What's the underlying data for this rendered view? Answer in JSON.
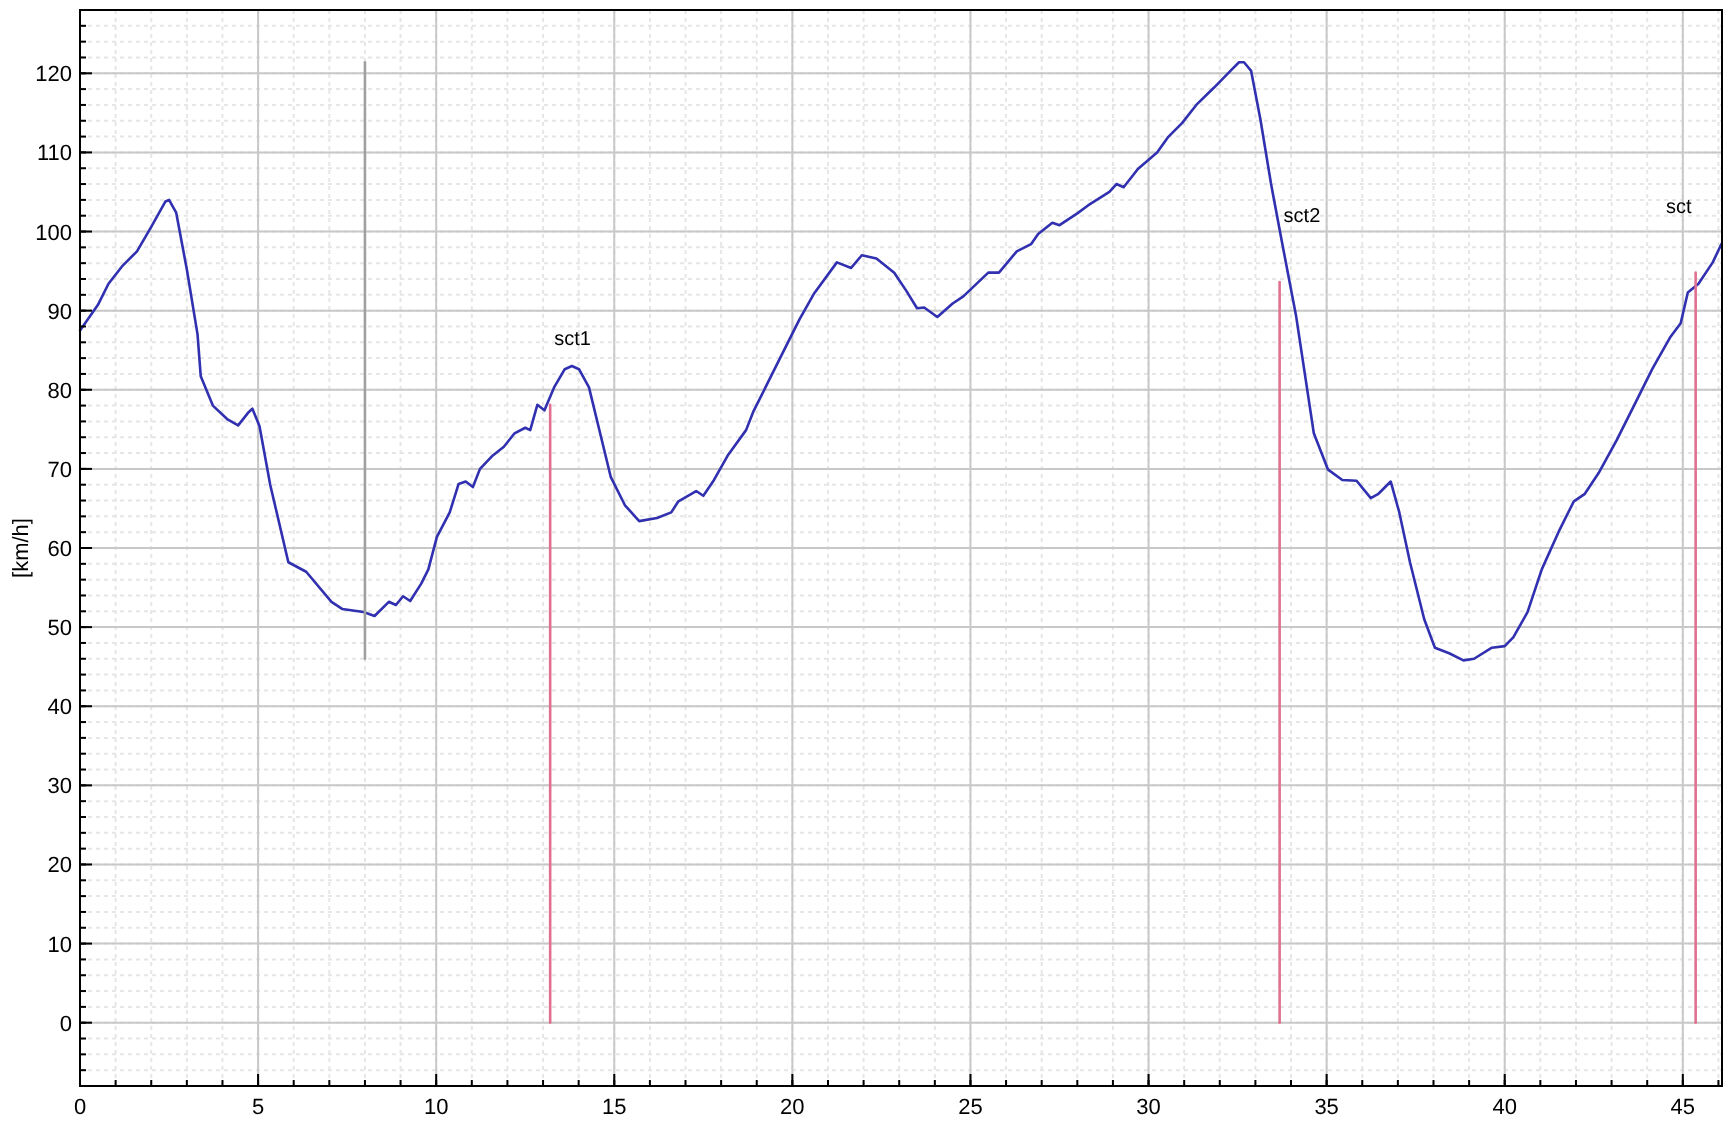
{
  "chart_data": {
    "type": "line",
    "ylabel": "[km/h]",
    "xlim": [
      0,
      46.1
    ],
    "ylim": [
      -8,
      128
    ],
    "xticks": [
      0,
      5,
      10,
      15,
      20,
      25,
      30,
      35,
      40,
      45
    ],
    "yticks": [
      0,
      10,
      20,
      30,
      40,
      50,
      60,
      70,
      80,
      90,
      100,
      110,
      120
    ],
    "grid": true,
    "marker": "none",
    "line_style": "solid",
    "series": [
      {
        "color": "#3030b0",
        "x": [
          0,
          0.5,
          0.8,
          1.2,
          1.6,
          2.0,
          2.4,
          2.5,
          2.7,
          3.0,
          3.3,
          3.39,
          3.73,
          4.13,
          4.44,
          4.74,
          4.84,
          5.04,
          5.34,
          5.85,
          6.35,
          7.06,
          7.36,
          7.96,
          8.27,
          8.67,
          8.87,
          9.07,
          9.27,
          9.58,
          9.78,
          10.02,
          10.38,
          10.63,
          10.83,
          11.03,
          11.23,
          11.59,
          11.9,
          12.2,
          12.5,
          12.64,
          12.84,
          13.04,
          13.31,
          13.61,
          13.81,
          14.01,
          14.29,
          14.9,
          15.3,
          15.7,
          16.2,
          16.6,
          16.8,
          17.3,
          17.5,
          17.8,
          18.2,
          18.7,
          18.9,
          19.3,
          19.7,
          20.2,
          20.6,
          21.25,
          21.65,
          21.95,
          22.36,
          22.86,
          23.2,
          23.5,
          23.7,
          24.07,
          24.5,
          24.8,
          25.5,
          25.8,
          26.3,
          26.7,
          26.9,
          27.3,
          27.5,
          28.0,
          28.3,
          28.9,
          29.1,
          29.3,
          29.7,
          30.24,
          30.54,
          30.94,
          31.34,
          31.84,
          32.34,
          32.54,
          32.68,
          32.88,
          33.14,
          33.44,
          33.74,
          34.14,
          34.64,
          35.04,
          35.44,
          35.84,
          36.24,
          36.44,
          36.8,
          37.04,
          37.34,
          37.74,
          38.04,
          38.44,
          38.84,
          39.14,
          39.64,
          40.0,
          40.24,
          40.64,
          41.04,
          41.54,
          41.94,
          42.24,
          42.64,
          43.14,
          43.64,
          44.14,
          44.64,
          44.94,
          45.14,
          45.44,
          45.84,
          46.08
        ],
        "values": [
          87.5,
          90.7,
          93.4,
          95.7,
          97.5,
          100.6,
          103.8,
          104,
          102.4,
          95.2,
          87,
          81.7,
          78,
          76.3,
          75.5,
          77.2,
          77.6,
          75.4,
          68,
          58.2,
          57,
          53.2,
          52.3,
          51.9,
          51.4,
          53.2,
          52.8,
          53.9,
          53.3,
          55.5,
          57.3,
          61.4,
          64.5,
          68.1,
          68.4,
          67.7,
          70,
          71.7,
          72.8,
          74.5,
          75.2,
          74.9,
          78.1,
          77.4,
          80.3,
          82.6,
          83,
          82.6,
          80.3,
          69,
          65.4,
          63.4,
          63.8,
          64.5,
          65.9,
          67.2,
          66.6,
          68.6,
          71.8,
          74.9,
          77.2,
          80.8,
          84.4,
          88.9,
          92.1,
          96.1,
          95.4,
          97,
          96.6,
          94.8,
          92.5,
          90.3,
          90.4,
          89.2,
          90.9,
          91.8,
          94.8,
          94.8,
          97.5,
          98.4,
          99.7,
          101.1,
          100.8,
          102.3,
          103.3,
          105,
          106,
          105.6,
          107.9,
          110,
          111.9,
          113.7,
          116,
          118.2,
          120.5,
          121.4,
          121.4,
          120.3,
          114.2,
          106,
          98.8,
          89.4,
          74.5,
          69.9,
          68.6,
          68.5,
          66.3,
          66.8,
          68.4,
          64.5,
          58.2,
          51,
          47.4,
          46.7,
          45.8,
          46,
          47.4,
          47.6,
          48.7,
          51.9,
          57.3,
          62.3,
          65.9,
          66.8,
          69.5,
          73.6,
          78.1,
          82.6,
          86.6,
          88.4,
          92.3,
          93.4,
          96.1,
          98.4
        ]
      },
      {
        "color": "#a0a0a0",
        "x": [
          8,
          8
        ],
        "values": [
          46,
          121.4
        ]
      },
      {
        "color": "#e07090",
        "x": [
          13.2,
          13.2
        ],
        "values": [
          0,
          78.1
        ]
      },
      {
        "color": "#e07090",
        "x": [
          33.68,
          33.68
        ],
        "values": [
          0,
          93.6
        ]
      },
      {
        "color": "#e07090",
        "x": [
          45.36,
          45.36
        ],
        "values": [
          0,
          94.8
        ]
      }
    ],
    "annotations": [
      {
        "text": "sct1",
        "x": 13.2,
        "y": 78.1
      },
      {
        "text": "sct2",
        "x": 33.68,
        "y": 93.6
      },
      {
        "text": "sct",
        "x": 45.36,
        "y": 94.8
      }
    ]
  }
}
